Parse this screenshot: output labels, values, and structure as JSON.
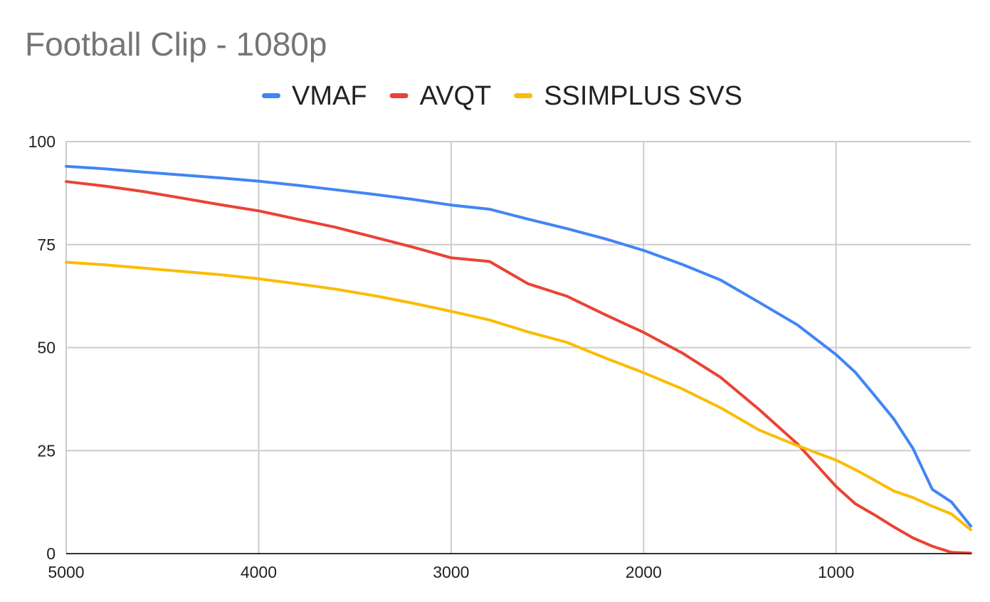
{
  "chart_data": {
    "type": "line",
    "title": "Football Clip - 1080p",
    "xlabel": "",
    "ylabel": "",
    "x_reversed": true,
    "xlim": [
      5000,
      300
    ],
    "ylim": [
      0,
      100
    ],
    "x_ticks": [
      5000,
      4000,
      3000,
      2000,
      1000
    ],
    "y_ticks": [
      0,
      25,
      50,
      75,
      100
    ],
    "grid": true,
    "legend_position": "top",
    "x": [
      5000,
      4800,
      4600,
      4400,
      4200,
      4000,
      3800,
      3600,
      3400,
      3200,
      3000,
      2800,
      2600,
      2400,
      2200,
      2000,
      1800,
      1600,
      1400,
      1200,
      1000,
      900,
      800,
      700,
      600,
      500,
      400,
      300
    ],
    "series": [
      {
        "name": "VMAF",
        "color": "#4285f4",
        "values": [
          94,
          93.4,
          92.6,
          91.9,
          91.2,
          90.4,
          89.4,
          88.3,
          87.2,
          86,
          84.6,
          83.6,
          81.2,
          78.9,
          76.4,
          73.6,
          70.2,
          66.4,
          61,
          55.5,
          48.3,
          44,
          38.4,
          32.7,
          25.5,
          15.6,
          12.5,
          6.7
        ]
      },
      {
        "name": "AVQT",
        "color": "#ea4335",
        "values": [
          90.3,
          89.2,
          87.9,
          86.3,
          84.7,
          83.2,
          81.2,
          79.2,
          76.8,
          74.4,
          71.8,
          70.9,
          65.5,
          62.5,
          58,
          53.7,
          48.7,
          42.8,
          35,
          26.6,
          16.3,
          12.1,
          9.4,
          6.5,
          3.8,
          1.8,
          0.3,
          0.1
        ]
      },
      {
        "name": "SSIMPLUS SVS",
        "color": "#fbbc04",
        "values": [
          70.7,
          70.1,
          69.3,
          68.5,
          67.7,
          66.7,
          65.5,
          64.2,
          62.6,
          60.8,
          58.8,
          56.7,
          53.8,
          51.3,
          47.5,
          43.9,
          40,
          35.4,
          30,
          26.2,
          22.7,
          20.4,
          17.8,
          15.2,
          13.6,
          11.5,
          9.6,
          5.8
        ]
      }
    ]
  }
}
